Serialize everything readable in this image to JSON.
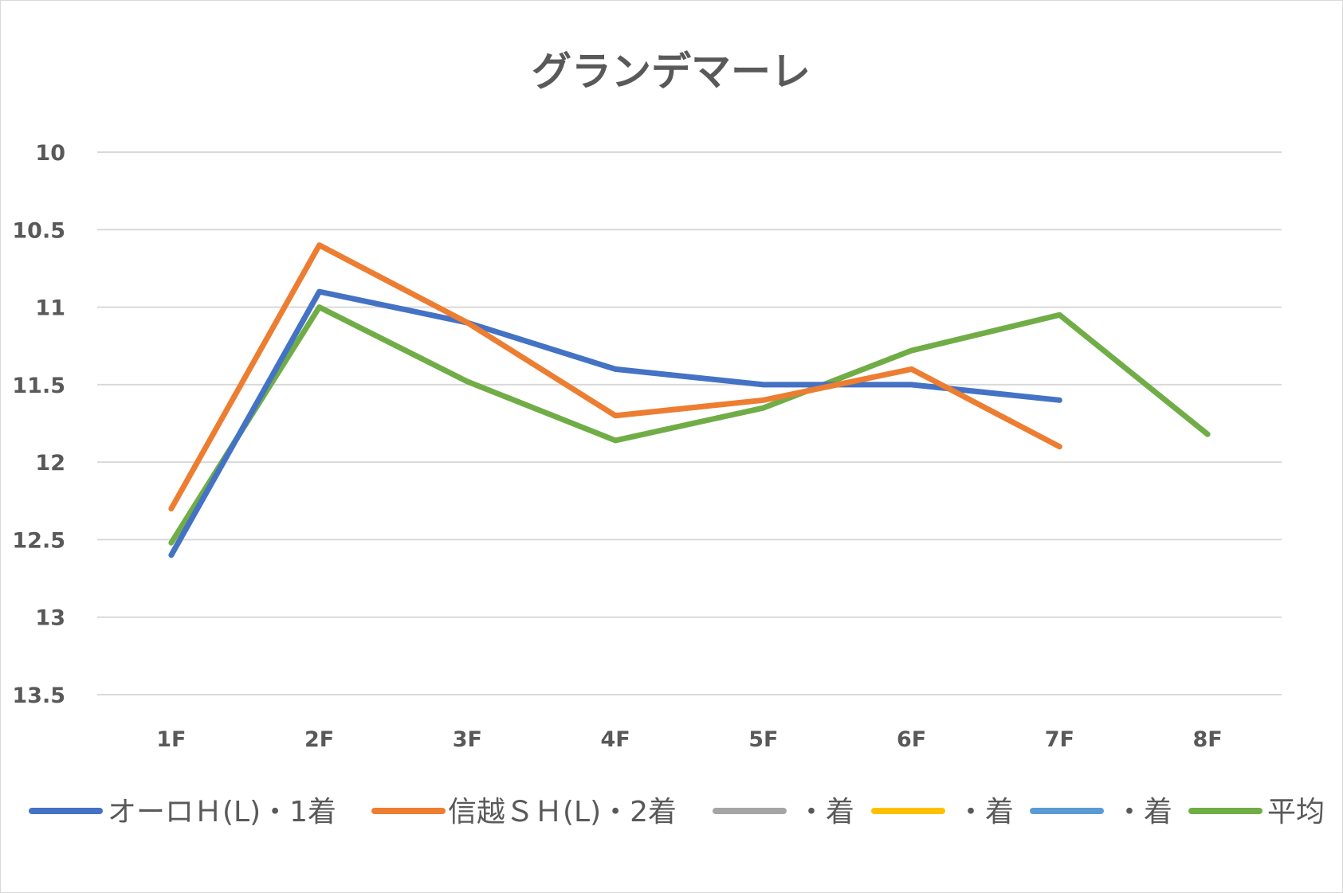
{
  "chart_data": {
    "type": "line",
    "title": "グランデマーレ",
    "categories": [
      "1F",
      "2F",
      "3F",
      "4F",
      "5F",
      "6F",
      "7F",
      "8F"
    ],
    "y_axis": {
      "reversed": true,
      "min": 10,
      "max": 13.5,
      "ticks": [
        "10",
        "10.5",
        "11",
        "11.5",
        "12",
        "12.5",
        "13",
        "13.5"
      ]
    },
    "grid": true,
    "legend_position": "bottom",
    "series": [
      {
        "name": "オーロＨ(L)・1着",
        "color": "#4472c4",
        "values": [
          12.6,
          10.9,
          11.1,
          11.4,
          11.5,
          11.5,
          11.6,
          null
        ]
      },
      {
        "name": "信越ＳＨ(L)・2着",
        "color": "#ed7d31",
        "values": [
          12.3,
          10.6,
          11.1,
          11.7,
          11.6,
          11.4,
          11.9,
          null
        ]
      },
      {
        "name": "・着",
        "color": "#a5a5a5",
        "values": [
          null,
          null,
          null,
          null,
          null,
          null,
          null,
          null
        ]
      },
      {
        "name": "・着",
        "color": "#ffc000",
        "values": [
          null,
          null,
          null,
          null,
          null,
          null,
          null,
          null
        ]
      },
      {
        "name": "・着",
        "color": "#5b9bd5",
        "values": [
          null,
          null,
          null,
          null,
          null,
          null,
          null,
          null
        ]
      },
      {
        "name": "平均",
        "color": "#70ad47",
        "values": [
          12.52,
          11.0,
          11.48,
          11.86,
          11.65,
          11.28,
          11.05,
          11.82
        ]
      }
    ]
  }
}
